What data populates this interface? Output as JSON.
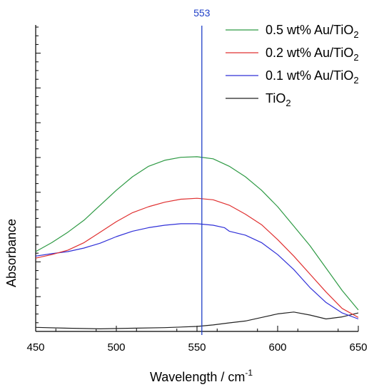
{
  "chart_data": {
    "type": "line",
    "title": "",
    "xlabel": "Wavelength / cm",
    "xlabel_superscript": "-1",
    "ylabel": "Absorbance",
    "xlim": [
      450,
      650
    ],
    "ylim": [
      0,
      1
    ],
    "y_ticks_shown": false,
    "x_ticks": [
      450,
      500,
      550,
      600,
      650
    ],
    "x_tick_labels": [
      "450",
      "500",
      "550",
      "600",
      "650"
    ],
    "grid": false,
    "legend_position": "top-right",
    "colors": {
      "green": "#2e9a44",
      "red": "#e03030",
      "blue": "#3030d8",
      "black": "#222222",
      "marker": "#2040c8"
    },
    "vertical_marker": {
      "x": 553,
      "label": "553"
    },
    "series": [
      {
        "name": "0.5 wt% Au/TiO2",
        "name_parts": [
          "0.5 wt% Au/TiO",
          "2"
        ],
        "color": "#2e9a44",
        "x": [
          450,
          460,
          470,
          480,
          490,
          500,
          510,
          520,
          530,
          540,
          550,
          560,
          570,
          580,
          590,
          600,
          610,
          620,
          630,
          640,
          650
        ],
        "y": [
          0.25,
          0.28,
          0.315,
          0.355,
          0.405,
          0.455,
          0.5,
          0.535,
          0.555,
          0.565,
          0.567,
          0.56,
          0.535,
          0.5,
          0.455,
          0.4,
          0.335,
          0.27,
          0.195,
          0.12,
          0.055
        ]
      },
      {
        "name": "0.2 wt% Au/TiO2",
        "name_parts": [
          "0.2 wt% Au/TiO",
          "2"
        ],
        "color": "#e03030",
        "x": [
          450,
          460,
          470,
          480,
          490,
          500,
          510,
          520,
          530,
          540,
          550,
          560,
          570,
          580,
          590,
          600,
          610,
          620,
          630,
          640,
          650
        ],
        "y": [
          0.228,
          0.24,
          0.255,
          0.28,
          0.315,
          0.35,
          0.38,
          0.4,
          0.415,
          0.425,
          0.428,
          0.423,
          0.405,
          0.375,
          0.34,
          0.29,
          0.235,
          0.175,
          0.115,
          0.06,
          0.03
        ]
      },
      {
        "name": "0.1 wt% Au/TiO2",
        "name_parts": [
          "0.1 wt% Au/TiO",
          "2"
        ],
        "color": "#3030d8",
        "x": [
          450,
          460,
          470,
          480,
          490,
          500,
          510,
          520,
          530,
          540,
          550,
          560,
          567,
          570,
          580,
          590,
          600,
          610,
          620,
          630,
          640,
          650
        ],
        "y": [
          0.235,
          0.243,
          0.25,
          0.262,
          0.278,
          0.3,
          0.318,
          0.33,
          0.338,
          0.343,
          0.343,
          0.338,
          0.33,
          0.318,
          0.305,
          0.28,
          0.24,
          0.19,
          0.13,
          0.08,
          0.045,
          0.025
        ]
      },
      {
        "name": "TiO2",
        "name_parts": [
          "TiO",
          "2"
        ],
        "color": "#222222",
        "x": [
          450,
          470,
          490,
          510,
          530,
          550,
          560,
          570,
          580,
          590,
          600,
          610,
          620,
          630,
          640,
          650
        ],
        "y": [
          -0.003,
          -0.006,
          -0.008,
          -0.006,
          -0.004,
          0.0,
          0.005,
          0.012,
          0.018,
          0.03,
          0.042,
          0.048,
          0.038,
          0.025,
          0.032,
          0.045
        ]
      }
    ]
  }
}
